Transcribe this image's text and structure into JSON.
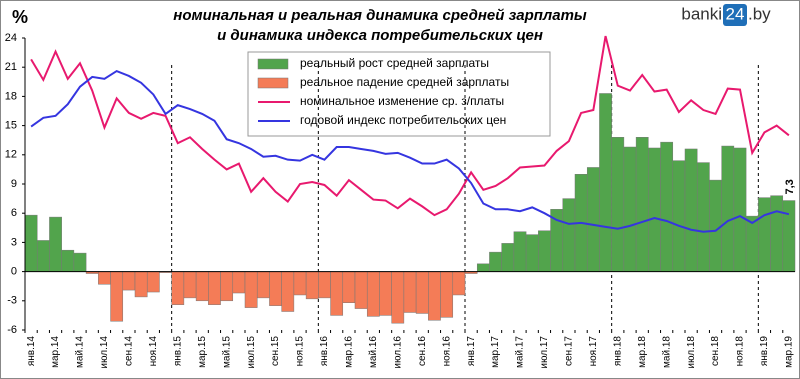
{
  "chart_data": {
    "type": "bar-line",
    "title": [
      "номинальная и реальная динамика средней зарплаты",
      "и динамика  индекса  потребительских  цен"
    ],
    "unit": "%",
    "watermark": {
      "left": "banki",
      "box": "24",
      "right": ".by"
    },
    "categories": [
      "янв.14",
      null,
      "мар.14",
      null,
      "май.14",
      null,
      "июл.14",
      null,
      "сен.14",
      null,
      "ноя.14",
      null,
      "янв.15",
      null,
      "мар.15",
      null,
      "май.15",
      null,
      "июл.15",
      null,
      "сен.15",
      null,
      "ноя.15",
      null,
      "янв.16",
      null,
      "мар.16",
      null,
      "май.16",
      null,
      "июл.16",
      null,
      "сен.16",
      null,
      "ноя.16",
      null,
      "янв.17",
      null,
      "мар.17",
      null,
      "май.17",
      null,
      "июл.17",
      null,
      "сен.17",
      null,
      "ноя.17",
      null,
      "янв.18",
      null,
      "мар.18",
      null,
      "май.18",
      null,
      "июл.18",
      null,
      "сен.18",
      null,
      "ноя.18",
      null,
      "янв.19",
      null,
      "мар.19"
    ],
    "series": [
      {
        "name": "реальный рост средней зарплаты",
        "kind": "bar",
        "color": "#52a44c",
        "values": [
          5.8,
          3.2,
          5.6,
          2.2,
          1.9,
          null,
          null,
          null,
          null,
          null,
          null,
          null,
          null,
          null,
          null,
          null,
          null,
          null,
          null,
          null,
          null,
          null,
          null,
          null,
          null,
          null,
          null,
          null,
          null,
          null,
          null,
          null,
          null,
          null,
          null,
          null,
          null,
          0.8,
          2.0,
          2.9,
          4.1,
          3.8,
          4.2,
          6.4,
          7.5,
          10.0,
          10.7,
          18.3,
          13.8,
          12.8,
          13.8,
          12.7,
          13.3,
          11.4,
          12.6,
          11.2,
          9.4,
          12.9,
          12.7,
          5.7,
          7.6,
          7.8,
          7.3
        ],
        "value_labels": [
          null,
          null,
          null,
          null,
          null,
          null,
          null,
          null,
          null,
          null,
          null,
          null,
          null,
          null,
          null,
          null,
          null,
          null,
          null,
          null,
          null,
          null,
          null,
          null,
          null,
          null,
          null,
          null,
          null,
          null,
          null,
          null,
          null,
          null,
          null,
          null,
          null,
          null,
          null,
          null,
          null,
          null,
          null,
          null,
          null,
          null,
          null,
          null,
          null,
          null,
          null,
          null,
          null,
          null,
          null,
          null,
          null,
          null,
          null,
          null,
          null,
          null,
          "7,3"
        ]
      },
      {
        "name": "реальное падение средней зарплаты",
        "kind": "bar",
        "color": "#f47c57",
        "values": [
          null,
          null,
          null,
          null,
          null,
          -0.2,
          -1.3,
          -5.1,
          -1.9,
          -2.6,
          -2.1,
          -0.1,
          -3.4,
          -2.7,
          -3.0,
          -3.4,
          -3.0,
          -2.2,
          -3.7,
          -2.7,
          -3.5,
          -4.1,
          -2.4,
          -2.8,
          -2.7,
          -4.5,
          -3.2,
          -3.8,
          -4.6,
          -4.5,
          -5.3,
          -4.2,
          -4.3,
          -5.0,
          -4.7,
          -2.4,
          -0.2,
          null,
          null,
          null,
          null,
          null,
          null,
          null,
          null,
          null,
          null,
          null,
          null,
          null,
          null,
          null,
          null,
          null,
          null,
          null,
          null,
          null,
          null,
          null,
          null,
          null,
          null
        ]
      },
      {
        "name": "номинальное изменение ср. з/платы",
        "kind": "line",
        "color": "#e8196e",
        "values": [
          21.8,
          19.7,
          22.6,
          19.8,
          21.4,
          18.6,
          14.8,
          17.8,
          16.3,
          15.7,
          16.3,
          16.0,
          13.2,
          13.8,
          12.6,
          11.5,
          10.5,
          11.1,
          8.2,
          9.6,
          8.2,
          7.2,
          9.0,
          9.2,
          8.9,
          7.8,
          9.4,
          8.4,
          7.4,
          7.3,
          6.5,
          7.5,
          6.7,
          5.8,
          6.4,
          8.0,
          10.2,
          8.4,
          8.8,
          9.6,
          10.7,
          10.8,
          10.9,
          12.4,
          13.4,
          16.3,
          16.6,
          24.2,
          19.1,
          18.6,
          20.2,
          18.5,
          18.7,
          16.4,
          17.6,
          16.6,
          16.2,
          18.8,
          18.7,
          12.2,
          14.3,
          15.0,
          14.0
        ]
      },
      {
        "name": "годовой индекс потребительских цен",
        "kind": "line",
        "color": "#3535e0",
        "values": [
          14.9,
          15.8,
          16.0,
          17.2,
          19.0,
          20.0,
          19.8,
          20.6,
          20.1,
          19.4,
          18.2,
          16.2,
          17.1,
          16.7,
          16.2,
          15.5,
          13.6,
          13.2,
          12.6,
          11.8,
          11.9,
          11.5,
          11.4,
          12.0,
          11.5,
          12.8,
          12.8,
          12.6,
          12.4,
          12.1,
          12.2,
          11.7,
          11.1,
          11.1,
          11.5,
          10.6,
          9.1,
          7.0,
          6.4,
          6.4,
          6.2,
          6.6,
          6.0,
          5.3,
          4.9,
          5.0,
          4.8,
          4.6,
          4.4,
          4.7,
          5.1,
          5.5,
          5.2,
          4.7,
          4.3,
          4.1,
          4.2,
          5.2,
          5.7,
          5.0,
          5.8,
          6.2,
          5.9
        ]
      }
    ],
    "ylim": [
      -6,
      24
    ],
    "yticks": [
      -6,
      -3,
      0,
      3,
      6,
      9,
      12,
      15,
      18,
      21,
      24
    ],
    "grid": false
  }
}
